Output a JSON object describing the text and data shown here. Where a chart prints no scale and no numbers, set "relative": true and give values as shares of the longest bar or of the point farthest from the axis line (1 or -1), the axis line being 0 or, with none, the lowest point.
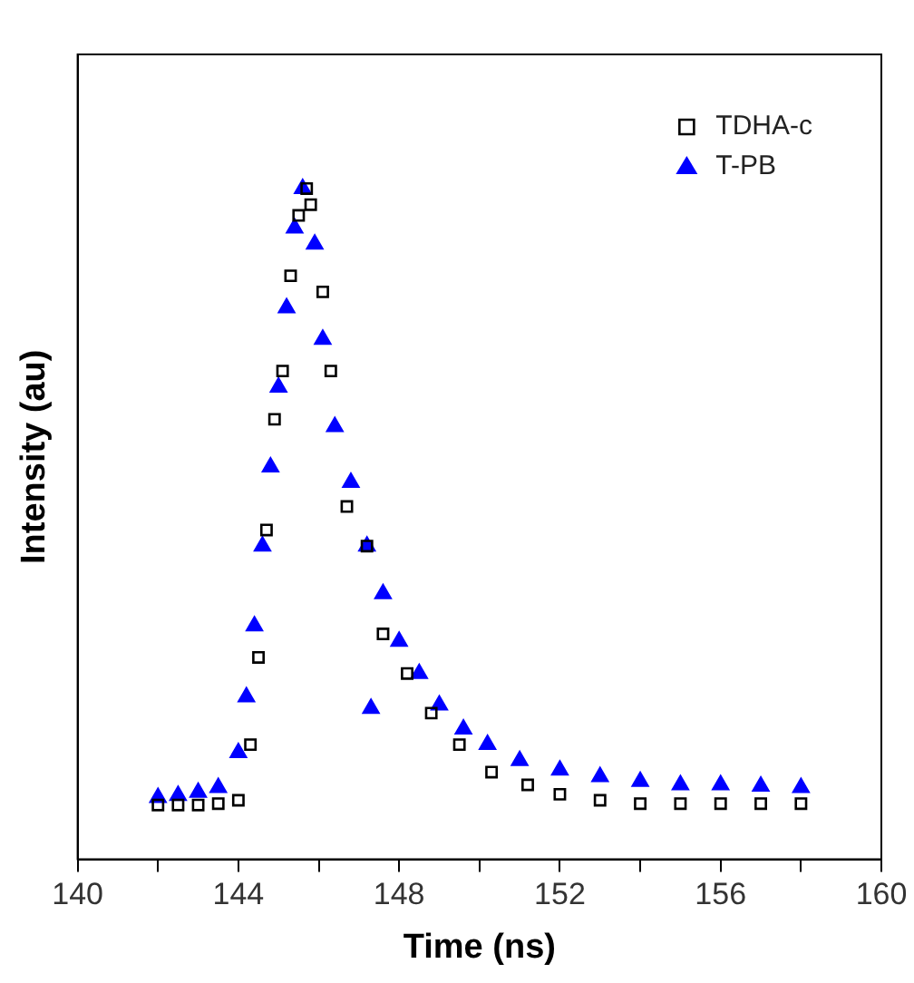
{
  "chart_data": {
    "type": "scatter",
    "xlabel": "Time (ns)",
    "ylabel": "Intensity (au)",
    "relative": true,
    "xlim": [
      140,
      160
    ],
    "xticks": [
      140,
      {
        "value": 142,
        "label": null
      },
      144,
      {
        "value": 146,
        "label": null
      },
      148,
      {
        "value": 150,
        "label": null
      },
      152,
      {
        "value": 154,
        "label": null
      },
      156,
      {
        "value": 158,
        "label": null
      },
      160
    ],
    "grid": false,
    "legend": "top right",
    "series": [
      {
        "name": "TDHA-c",
        "color": "#000000",
        "marker": "square",
        "x": [
          142,
          142.5,
          143,
          143.5,
          144,
          144.3,
          144.5,
          144.7,
          144.9,
          145.1,
          145.3,
          145.5,
          145.7,
          145.8,
          146.1,
          146.3,
          146.7,
          147.2,
          147.6,
          148.2,
          148.8,
          149.5,
          150.3,
          151.2,
          152,
          153,
          154,
          155,
          156,
          157,
          158
        ],
        "values": [
          0.081,
          0.081,
          0.081,
          0.083,
          0.088,
          0.171,
          0.301,
          0.491,
          0.656,
          0.728,
          0.87,
          0.96,
          1,
          0.976,
          0.846,
          0.728,
          0.526,
          0.467,
          0.336,
          0.277,
          0.218,
          0.171,
          0.13,
          0.111,
          0.097,
          0.088,
          0.083,
          0.083,
          0.083,
          0.083,
          0.083
        ]
      },
      {
        "name": "T-PB",
        "color": "#0000ff",
        "marker": "triangle",
        "x": [
          142,
          142.5,
          143,
          143.5,
          144,
          144.2,
          144.4,
          144.6,
          144.8,
          145,
          145.2,
          145.4,
          145.6,
          145.9,
          146.1,
          146.4,
          146.8,
          147.2,
          147.3,
          147.6,
          148,
          148.5,
          149,
          149.6,
          150.2,
          151,
          152,
          153,
          154,
          155,
          156,
          157,
          158
        ],
        "values": [
          0.092,
          0.095,
          0.1,
          0.107,
          0.159,
          0.242,
          0.348,
          0.467,
          0.585,
          0.704,
          0.822,
          0.941,
          1,
          0.917,
          0.775,
          0.645,
          0.562,
          0.467,
          0.225,
          0.396,
          0.325,
          0.277,
          0.23,
          0.194,
          0.171,
          0.147,
          0.133,
          0.123,
          0.116,
          0.111,
          0.111,
          0.109,
          0.107
        ]
      }
    ]
  }
}
